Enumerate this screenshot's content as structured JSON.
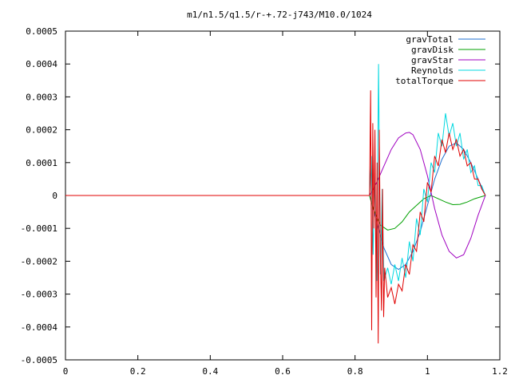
{
  "chart_data": {
    "type": "line",
    "title": "m1/n1.5/q1.5/r-+.72-j743/M10.0/1024",
    "xlabel": "",
    "ylabel": "",
    "xlim": [
      0,
      1.2
    ],
    "ylim": [
      -0.0005,
      0.0005
    ],
    "x_ticks": [
      0,
      0.2,
      0.4,
      0.6,
      0.8,
      1,
      1.2
    ],
    "x_tick_labels": [
      "0",
      "0.2",
      "0.4",
      "0.6",
      "0.8",
      "1",
      "1.2"
    ],
    "y_ticks": [
      0.0005,
      0.0004,
      0.0003,
      0.0002,
      0.0001,
      0,
      -0.0001,
      -0.0002,
      -0.0003,
      -0.0004,
      -0.0005
    ],
    "y_tick_labels": [
      "0.0005",
      "0.0004",
      "0.0003",
      "0.0002",
      "0.0001",
      "0",
      "-0.0001",
      "-0.0002",
      "-0.0003",
      "-0.0004",
      "-0.0005"
    ],
    "grid": false,
    "legend_position": "top-right",
    "series": [
      {
        "name": "gravTotal",
        "color": "#1f6fd1",
        "x": [
          0,
          0.84,
          0.86,
          0.88,
          0.9,
          0.92,
          0.94,
          0.96,
          0.98,
          1.0,
          1.02,
          1.04,
          1.06,
          1.08,
          1.1,
          1.12,
          1.14,
          1.16
        ],
        "y": [
          0,
          0,
          -8e-05,
          -0.00016,
          -0.00021,
          -0.000225,
          -0.00021,
          -0.00017,
          -0.00011,
          -3e-05,
          5e-05,
          0.00011,
          0.00015,
          0.00016,
          0.00014,
          0.0001,
          5e-05,
          0
        ]
      },
      {
        "name": "gravDisk",
        "color": "#00a000",
        "x": [
          0,
          0.84,
          0.85,
          0.87,
          0.89,
          0.91,
          0.93,
          0.95,
          0.97,
          0.99,
          1.01,
          1.03,
          1.05,
          1.07,
          1.09,
          1.11,
          1.13,
          1.16
        ],
        "y": [
          0,
          0,
          -4e-05,
          -9e-05,
          -0.000105,
          -0.0001,
          -8e-05,
          -5e-05,
          -3e-05,
          -1e-05,
          0,
          -1e-05,
          -2e-05,
          -2.8e-05,
          -2.7e-05,
          -2e-05,
          -1e-05,
          0
        ]
      },
      {
        "name": "gravStar",
        "color": "#a000c0",
        "x": [
          0,
          0.84,
          0.86,
          0.88,
          0.9,
          0.92,
          0.94,
          0.95,
          0.96,
          0.98,
          1.0,
          1.02,
          1.04,
          1.06,
          1.08,
          1.1,
          1.12,
          1.14,
          1.16
        ],
        "y": [
          0,
          0,
          4e-05,
          9e-05,
          0.00014,
          0.000175,
          0.00019,
          0.000192,
          0.000185,
          0.00014,
          6e-05,
          -4e-05,
          -0.00012,
          -0.00017,
          -0.00019,
          -0.00018,
          -0.00013,
          -6e-05,
          0
        ]
      },
      {
        "name": "Reynolds",
        "color": "#00d8e0",
        "x": [
          0,
          0.84,
          0.845,
          0.85,
          0.855,
          0.86,
          0.865,
          0.87,
          0.875,
          0.88,
          0.89,
          0.9,
          0.91,
          0.92,
          0.93,
          0.94,
          0.95,
          0.96,
          0.97,
          0.98,
          0.99,
          1.0,
          1.01,
          1.02,
          1.03,
          1.04,
          1.05,
          1.06,
          1.07,
          1.08,
          1.09,
          1.1,
          1.11,
          1.12,
          1.13,
          1.14,
          1.15,
          1.16
        ],
        "y": [
          0,
          0,
          0.00012,
          -0.00018,
          6e-05,
          -0.00026,
          0.0004,
          -0.00024,
          2e-05,
          -0.00026,
          -0.00022,
          -0.00027,
          -0.00021,
          -0.00026,
          -0.00019,
          -0.00025,
          -0.00014,
          -0.0002,
          -7e-05,
          -0.00012,
          2e-05,
          -2e-05,
          0.0001,
          7e-05,
          0.00019,
          0.00015,
          0.00025,
          0.00018,
          0.00022,
          0.00015,
          0.00019,
          0.00011,
          0.00014,
          7e-05,
          9e-05,
          3e-05,
          3e-05,
          0
        ]
      },
      {
        "name": "totalTorque",
        "color": "#e00000",
        "x": [
          0,
          0.84,
          0.843,
          0.846,
          0.849,
          0.852,
          0.855,
          0.858,
          0.861,
          0.864,
          0.867,
          0.87,
          0.873,
          0.876,
          0.879,
          0.882,
          0.89,
          0.9,
          0.91,
          0.92,
          0.93,
          0.94,
          0.95,
          0.96,
          0.97,
          0.98,
          0.99,
          1.0,
          1.01,
          1.02,
          1.03,
          1.04,
          1.05,
          1.06,
          1.07,
          1.08,
          1.09,
          1.1,
          1.11,
          1.12,
          1.13,
          1.14,
          1.15,
          1.16
        ],
        "y": [
          0,
          0,
          0.00032,
          -0.00041,
          0.00022,
          -0.0001,
          0.0002,
          -0.00031,
          0.0001,
          -0.00045,
          0.0002,
          -0.00018,
          -0.00035,
          2e-05,
          -0.00037,
          -0.00022,
          -0.00031,
          -0.00028,
          -0.00033,
          -0.00027,
          -0.00029,
          -0.00021,
          -0.00024,
          -0.00015,
          -0.00017,
          -5e-05,
          -8e-05,
          4e-05,
          1e-05,
          0.00012,
          9e-05,
          0.00017,
          0.00013,
          0.00019,
          0.00014,
          0.00017,
          0.00012,
          0.00014,
          9e-05,
          0.0001,
          5e-05,
          5e-05,
          2e-05,
          0
        ]
      }
    ]
  }
}
